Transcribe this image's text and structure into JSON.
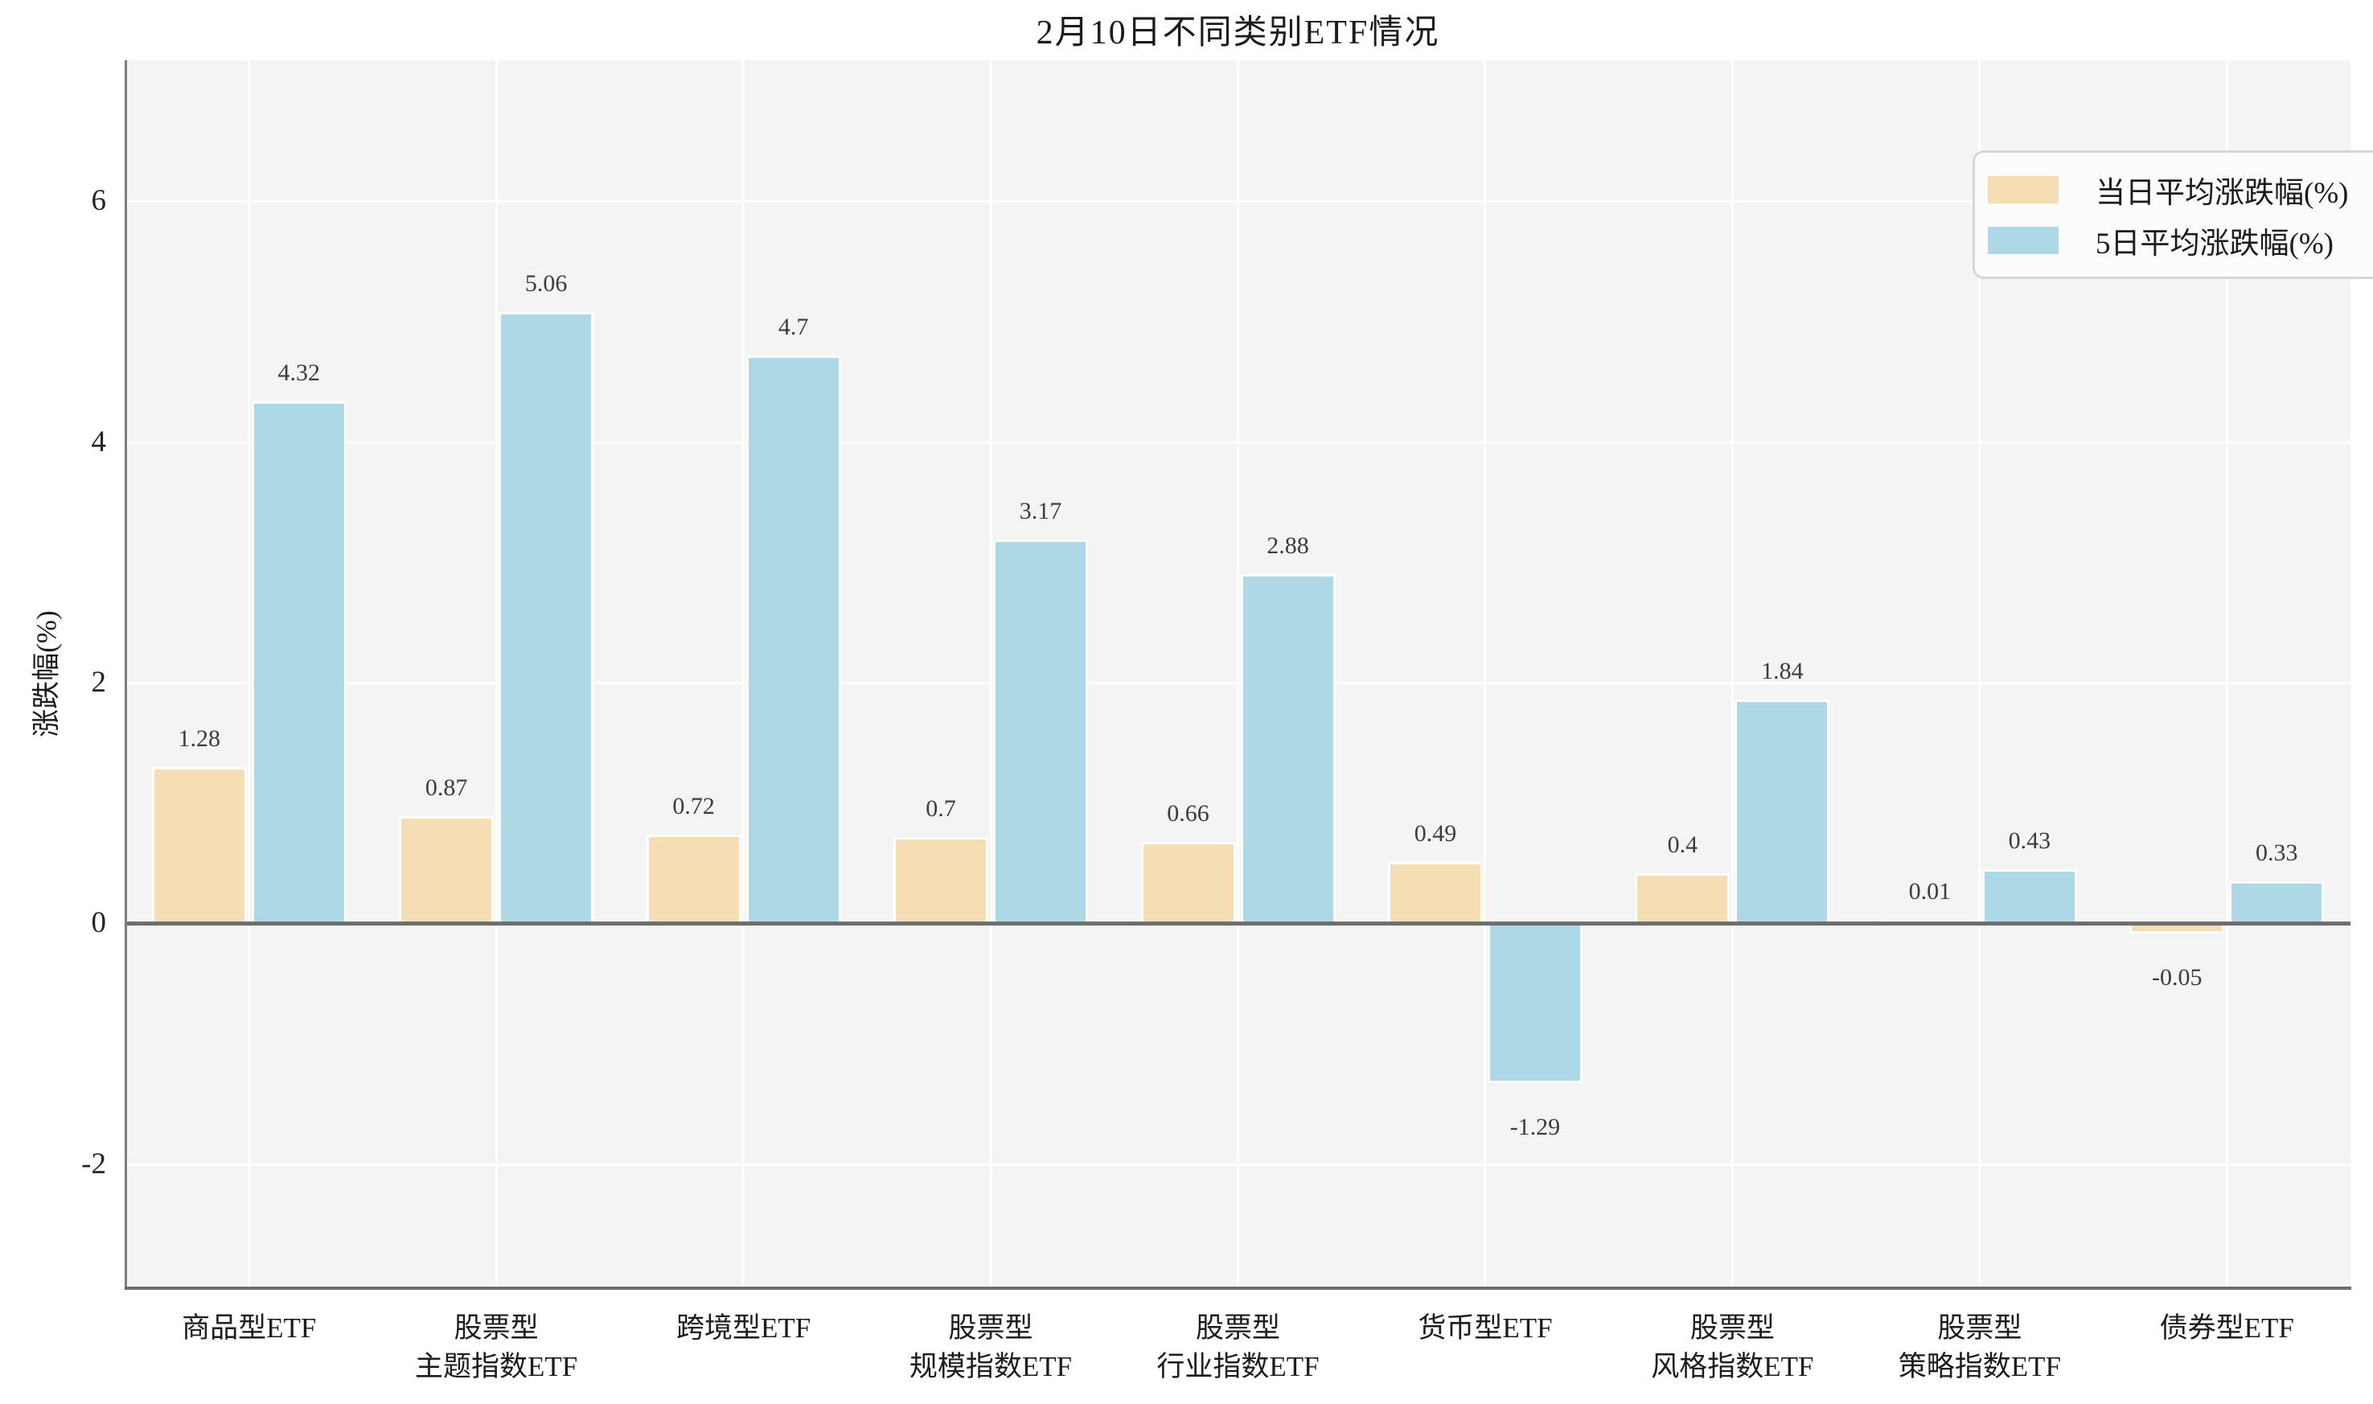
{
  "title": "2月10日不同类别ETF情况",
  "colors": {
    "series_day": "#F5DEB3",
    "series_5day": "#ADD8E6",
    "plot_background": "#F4F4F4",
    "gridline": "#FFFFFF",
    "axis_line": "#6E6E6E",
    "text": "#1C1C1C"
  },
  "chart_data": {
    "type": "bar",
    "title": "2月10日不同类别ETF情况",
    "xlabel": "",
    "ylabel": "涨跌幅(%)",
    "categories": [
      "商品型ETF",
      "股票型\n主题指数ETF",
      "跨境型ETF",
      "股票型\n规模指数ETF",
      "股票型\n行业指数ETF",
      "货币型ETF",
      "股票型\n风格指数ETF",
      "股票型\n策略指数ETF",
      "债券型ETF"
    ],
    "series": [
      {
        "name": "当日平均涨跌幅(%)",
        "color": "#F5DEB3",
        "values": [
          1.28,
          0.87,
          0.72,
          0.7,
          0.66,
          0.49,
          0.4,
          0.01,
          -0.05
        ],
        "value_labels": [
          "1.28",
          "0.87",
          "0.72",
          "0.7",
          "0.66",
          "0.49",
          "0.4",
          "0.01",
          "-0.05"
        ]
      },
      {
        "name": "5日平均涨跌幅(%)",
        "color": "#ADD8E6",
        "values": [
          4.32,
          5.06,
          4.7,
          3.17,
          2.88,
          -1.29,
          1.84,
          0.43,
          0.33
        ],
        "value_labels": [
          "4.32",
          "5.06",
          "4.7",
          "3.17",
          "2.88",
          "-1.29",
          "1.84",
          "0.43",
          "0.33"
        ]
      }
    ],
    "yticks": [
      -2,
      0,
      2,
      4,
      6
    ],
    "ytick_labels": [
      "-2",
      "0",
      "2",
      "4",
      "6"
    ],
    "ylim": [
      -3.03,
      7.17
    ],
    "grid": true,
    "legend_position": "upper right"
  }
}
